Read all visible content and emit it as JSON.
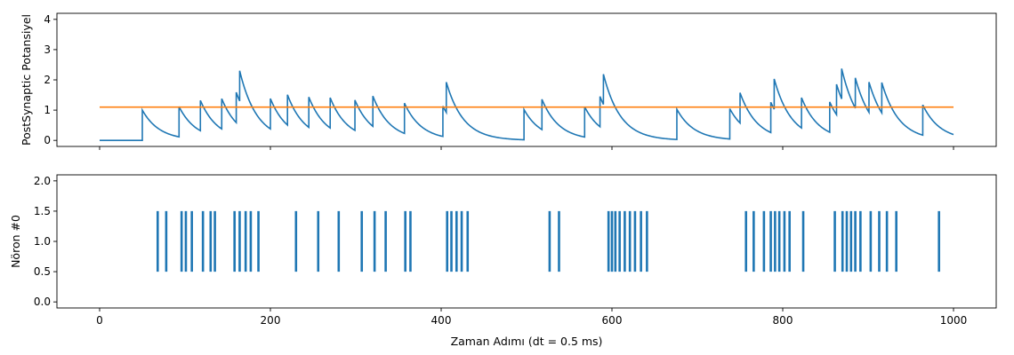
{
  "chart_data": [
    {
      "type": "line",
      "ylabel": "PostSynaptic Potansiyel",
      "xlabel": "",
      "xlim": [
        -50,
        1050
      ],
      "ylim": [
        -0.2,
        4.2
      ],
      "xticks": [
        0,
        200,
        400,
        600,
        800,
        1000
      ],
      "yticks": [
        0,
        1,
        2,
        3,
        4
      ],
      "ytick_labels": [
        "0",
        "1",
        "2",
        "3",
        "4"
      ],
      "show_xtick_labels": false,
      "grid": false,
      "tau": 20,
      "spike_increment": 1.0,
      "threshold": 1.1,
      "series": [
        {
          "role": "potential",
          "color": "#1f77b4",
          "x_start": 0,
          "x_end": 1000,
          "input_spike_times": [
            50,
            93,
            118,
            143,
            160,
            164,
            200,
            220,
            245,
            270,
            299,
            320,
            357,
            402,
            406,
            497,
            518,
            568,
            586,
            590,
            676,
            738,
            750,
            786,
            790,
            822,
            855,
            863,
            869,
            885,
            901,
            916,
            964
          ]
        },
        {
          "role": "threshold",
          "color": "#ff7f0e",
          "x": [
            0,
            1000
          ],
          "y": [
            1.1,
            1.1
          ]
        }
      ]
    },
    {
      "type": "raster",
      "ylabel": "Nöron #0",
      "xlabel": "Zaman Adımı (dt = 0.5 ms)",
      "xlim": [
        -50,
        1050
      ],
      "ylim": [
        -0.1,
        2.1
      ],
      "xticks": [
        0,
        200,
        400,
        600,
        800,
        1000
      ],
      "xtick_labels": [
        "0",
        "200",
        "400",
        "600",
        "800",
        "1000"
      ],
      "yticks": [
        0.0,
        0.5,
        1.0,
        1.5,
        2.0
      ],
      "ytick_labels": [
        "0.0",
        "0.5",
        "1.0",
        "1.5",
        "2.0"
      ],
      "grid": false,
      "event_range": [
        0.5,
        1.5
      ],
      "color": "#1f77b4",
      "events": [
        68,
        78,
        96,
        101,
        108,
        121,
        130,
        135,
        158,
        164,
        171,
        177,
        186,
        230,
        256,
        280,
        307,
        322,
        335,
        358,
        364,
        407,
        412,
        418,
        424,
        431,
        527,
        538,
        596,
        600,
        604,
        609,
        615,
        621,
        627,
        634,
        641,
        757,
        766,
        778,
        786,
        791,
        796,
        802,
        808,
        824,
        861,
        870,
        875,
        880,
        885,
        891,
        903,
        913,
        922,
        933,
        983
      ]
    }
  ]
}
